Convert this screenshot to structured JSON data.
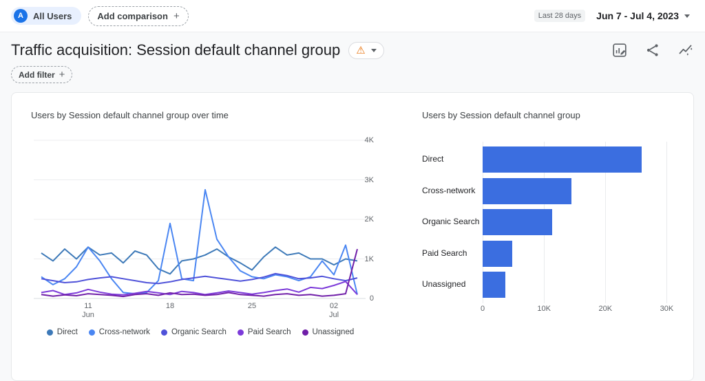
{
  "icons": {
    "plus": "+",
    "warning": "⚠"
  },
  "header": {
    "audience_chip": {
      "avatar_letter": "A",
      "label": "All Users"
    },
    "add_comparison_label": "Add comparison",
    "date_range": {
      "preset_badge": "Last 28 days",
      "label": "Jun 7 - Jul 4, 2023"
    }
  },
  "report": {
    "title": "Traffic acquisition: Session default channel group",
    "add_filter_label": "Add filter"
  },
  "chart_data": [
    {
      "type": "line",
      "title": "Users by Session default channel group over time",
      "xlabel": "",
      "ylabel": "Users",
      "ylim": [
        0,
        4000
      ],
      "grid": "horizontal",
      "legend_position": "bottom",
      "x": [
        "Jun 7",
        "Jun 8",
        "Jun 9",
        "Jun 10",
        "Jun 11",
        "Jun 12",
        "Jun 13",
        "Jun 14",
        "Jun 15",
        "Jun 16",
        "Jun 17",
        "Jun 18",
        "Jun 19",
        "Jun 20",
        "Jun 21",
        "Jun 22",
        "Jun 23",
        "Jun 24",
        "Jun 25",
        "Jun 26",
        "Jun 27",
        "Jun 28",
        "Jun 29",
        "Jun 30",
        "Jul 1",
        "Jul 2",
        "Jul 3",
        "Jul 4"
      ],
      "x_ticks": [
        {
          "index": 4,
          "lines": [
            "11",
            "Jun"
          ]
        },
        {
          "index": 11,
          "lines": [
            "18"
          ]
        },
        {
          "index": 18,
          "lines": [
            "25"
          ]
        },
        {
          "index": 25,
          "lines": [
            "02",
            "Jul"
          ]
        }
      ],
      "y_ticks": [
        {
          "value": 0,
          "label": "0"
        },
        {
          "value": 1000,
          "label": "1K"
        },
        {
          "value": 2000,
          "label": "2K"
        },
        {
          "value": 3000,
          "label": "3K"
        },
        {
          "value": 4000,
          "label": "4K"
        }
      ],
      "series": [
        {
          "name": "Direct",
          "color": "#3D79B8",
          "values": [
            1150,
            950,
            1250,
            1000,
            1300,
            1100,
            1150,
            900,
            1200,
            1100,
            750,
            620,
            950,
            1000,
            1100,
            1250,
            1050,
            900,
            720,
            1050,
            1300,
            1100,
            1150,
            1000,
            1000,
            850,
            1000,
            950
          ]
        },
        {
          "name": "Cross-network",
          "color": "#4A86F2",
          "values": [
            550,
            350,
            500,
            800,
            1300,
            950,
            500,
            150,
            120,
            150,
            450,
            1900,
            500,
            450,
            2750,
            1500,
            1050,
            700,
            550,
            500,
            600,
            550,
            450,
            550,
            950,
            600,
            1350,
            100
          ]
        },
        {
          "name": "Organic Search",
          "color": "#4F52D9",
          "values": [
            500,
            450,
            400,
            420,
            480,
            520,
            550,
            500,
            450,
            400,
            380,
            420,
            480,
            520,
            560,
            520,
            480,
            440,
            480,
            540,
            630,
            580,
            500,
            520,
            560,
            500,
            450,
            520
          ]
        },
        {
          "name": "Paid Search",
          "color": "#7C3AD9",
          "values": [
            150,
            200,
            100,
            140,
            230,
            160,
            110,
            90,
            130,
            180,
            140,
            100,
            180,
            150,
            100,
            140,
            190,
            150,
            110,
            150,
            200,
            240,
            160,
            280,
            250,
            330,
            430,
            100
          ]
        },
        {
          "name": "Unassigned",
          "color": "#6F1EA8",
          "values": [
            100,
            60,
            90,
            70,
            120,
            100,
            80,
            50,
            100,
            120,
            80,
            140,
            100,
            110,
            80,
            100,
            150,
            100,
            80,
            60,
            100,
            120,
            80,
            100,
            60,
            80,
            120,
            1250
          ]
        }
      ]
    },
    {
      "type": "bar",
      "orientation": "horizontal",
      "title": "Users by Session default channel group",
      "categories": [
        "Direct",
        "Cross-network",
        "Organic Search",
        "Paid Search",
        "Unassigned"
      ],
      "values": [
        25900,
        14500,
        11300,
        4800,
        3700
      ],
      "bar_color": "#3B6EE0",
      "xlim": [
        0,
        33200
      ],
      "grid": "vertical",
      "x_ticks": [
        {
          "value": 0,
          "label": "0"
        },
        {
          "value": 10000,
          "label": "10K"
        },
        {
          "value": 20000,
          "label": "20K"
        },
        {
          "value": 30000,
          "label": "30K"
        }
      ]
    }
  ]
}
